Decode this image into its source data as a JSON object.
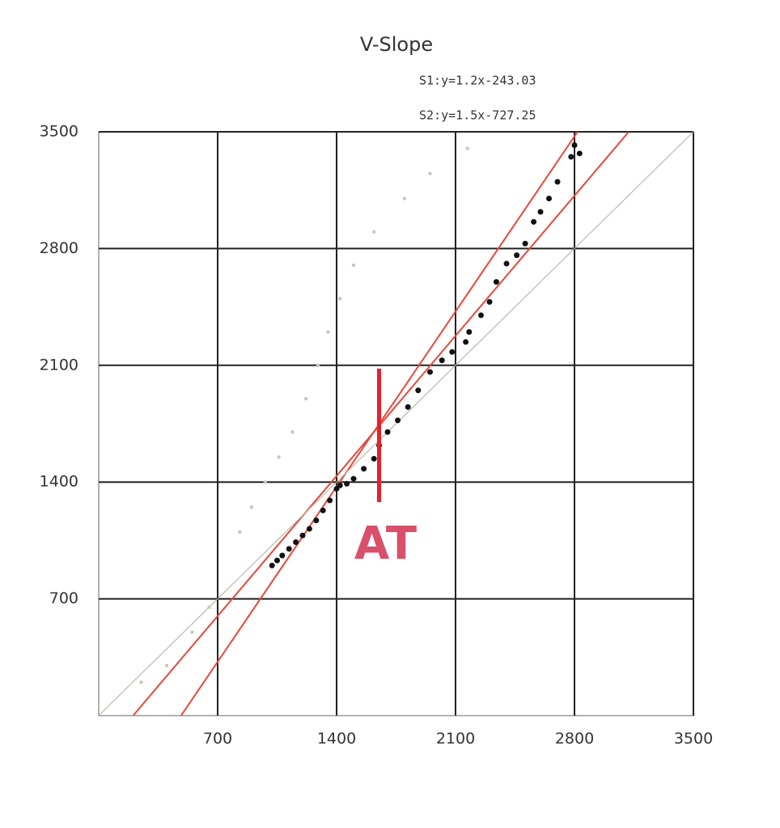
{
  "chart_data": {
    "type": "scatter",
    "title": "V-Slope",
    "equations": [
      "S1:y=1.2x-243.03",
      "S2:y=1.5x-727.25"
    ],
    "xlim": [
      0,
      3500
    ],
    "ylim": [
      0,
      3500
    ],
    "xticks": [
      700,
      1400,
      2100,
      2800,
      3500
    ],
    "yticks": [
      700,
      1400,
      2100,
      2800,
      3500
    ],
    "grid": true,
    "series": [
      {
        "color": "#111111",
        "x": [
          1020,
          1050,
          1080,
          1120,
          1160,
          1200,
          1240,
          1280,
          1320,
          1360,
          1400,
          1420,
          1460,
          1500,
          1560,
          1620,
          1650,
          1700,
          1760,
          1820,
          1880,
          1950,
          2020,
          2080,
          2160,
          2180,
          2250,
          2300,
          2340,
          2400,
          2460,
          2510,
          2560,
          2600,
          2650,
          2700,
          2780,
          2800,
          2830
        ],
        "values": [
          900,
          930,
          960,
          1000,
          1040,
          1080,
          1120,
          1170,
          1230,
          1290,
          1360,
          1380,
          1390,
          1420,
          1480,
          1540,
          1620,
          1700,
          1770,
          1850,
          1950,
          2060,
          2130,
          2180,
          2240,
          2300,
          2400,
          2480,
          2600,
          2710,
          2760,
          2830,
          2960,
          3020,
          3100,
          3200,
          3350,
          3420,
          3370
        ]
      },
      {
        "color": "#c8c8b8",
        "x": [
          250,
          400,
          550,
          650,
          830,
          900,
          980,
          1060,
          1140,
          1220,
          1290,
          1350,
          1420,
          1500,
          1620,
          1800,
          1950,
          2170
        ],
        "values": [
          200,
          300,
          500,
          650,
          1100,
          1250,
          1400,
          1550,
          1700,
          1900,
          2100,
          2300,
          2500,
          2700,
          2900,
          3100,
          3250,
          3400
        ]
      }
    ],
    "lines": [
      {
        "slope": 1.2,
        "intercept": -243.03,
        "color": "#e8473a"
      },
      {
        "slope": 1.5,
        "intercept": -727.25,
        "color": "#e8473a"
      },
      {
        "slope": 1,
        "intercept": 0,
        "color": "#b8b8a8"
      }
    ],
    "annotation": {
      "text": "AT",
      "x": 1650,
      "y": [
        1280,
        2080
      ],
      "color": "#e8202c",
      "text_color": "#d9506a"
    }
  }
}
